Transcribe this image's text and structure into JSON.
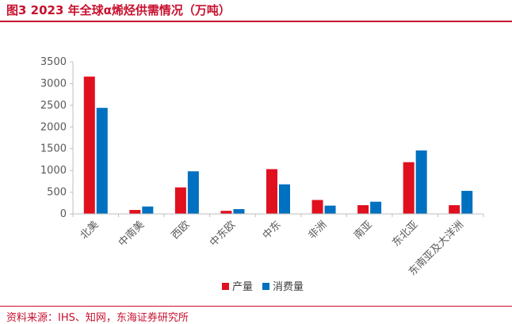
{
  "figure": {
    "title": "图3  2023 年全球α烯烃供需情况（万吨）",
    "source": "资料来源：IHS、知网，东海证券研究所"
  },
  "colors": {
    "accent": "#c8102e",
    "series_production": "#e0101f",
    "series_consumption": "#0070c0"
  },
  "chart_data": {
    "type": "bar",
    "title": "",
    "xlabel": "",
    "ylabel": "",
    "categories": [
      "北美",
      "中南美",
      "西欧",
      "中东欧",
      "中东",
      "非洲",
      "南亚",
      "东北亚",
      "东南亚及大洋洲"
    ],
    "ylim": [
      0,
      3500
    ],
    "yticks": [
      0,
      500,
      1000,
      1500,
      2000,
      2500,
      3000,
      3500
    ],
    "grid": false,
    "legend_position": "bottom",
    "series": [
      {
        "name": "产量",
        "color": "#e0101f",
        "values": [
          3160,
          90,
          610,
          70,
          1030,
          320,
          200,
          1190,
          200
        ]
      },
      {
        "name": "消费量",
        "color": "#0070c0",
        "values": [
          2440,
          170,
          980,
          110,
          680,
          190,
          280,
          1460,
          530
        ]
      }
    ]
  }
}
